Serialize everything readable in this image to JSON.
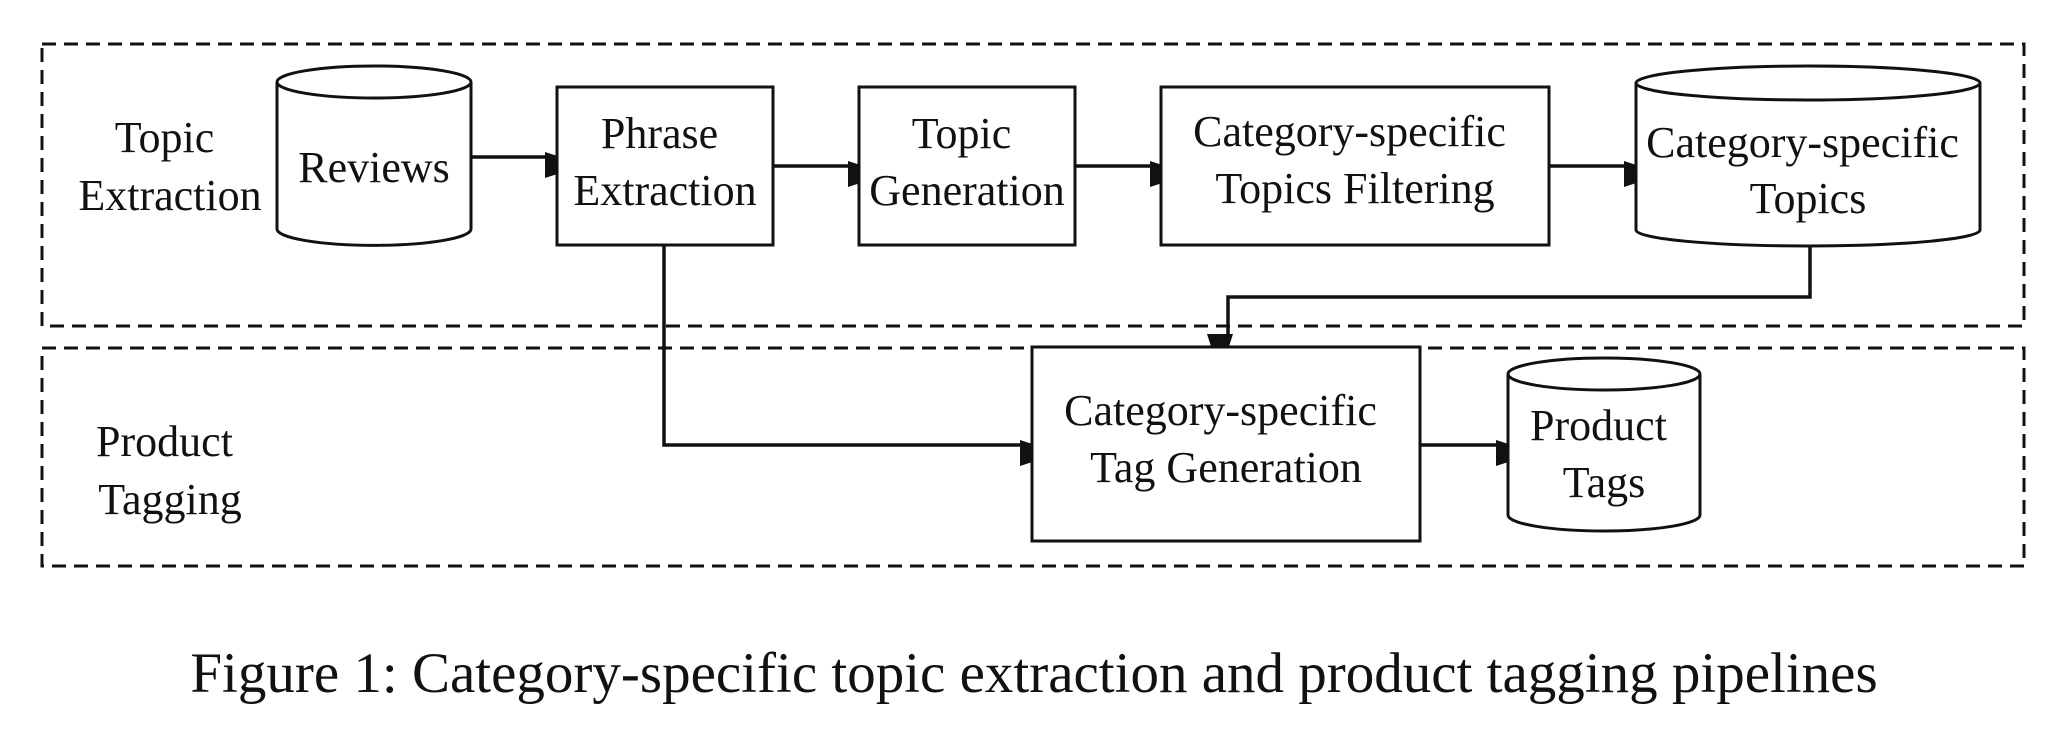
{
  "diagram": {
    "groups": {
      "topic_extraction": {
        "label_lines": [
          "Topic",
          "Extraction"
        ]
      },
      "product_tagging": {
        "label_lines": [
          "Product",
          "Tagging"
        ]
      }
    },
    "nodes": {
      "reviews": {
        "shape": "cylinder",
        "label_lines": [
          "Reviews"
        ]
      },
      "phrase_extraction": {
        "shape": "box",
        "label_lines": [
          "Phrase",
          "Extraction"
        ]
      },
      "topic_generation": {
        "shape": "box",
        "label_lines": [
          "Topic",
          "Generation"
        ]
      },
      "topics_filtering": {
        "shape": "box",
        "label_lines": [
          "Category-specific",
          "Topics Filtering"
        ]
      },
      "category_topics": {
        "shape": "cylinder",
        "label_lines": [
          "Category-specific",
          "Topics"
        ]
      },
      "tag_generation": {
        "shape": "box",
        "label_lines": [
          "Category-specific",
          "Tag Generation"
        ]
      },
      "product_tags": {
        "shape": "cylinder",
        "label_lines": [
          "Product",
          "Tags"
        ]
      }
    },
    "edges": [
      {
        "from": "Reviews",
        "to": "Phrase Extraction"
      },
      {
        "from": "Phrase Extraction",
        "to": "Topic Generation"
      },
      {
        "from": "Topic Generation",
        "to": "Category-specific Topics Filtering"
      },
      {
        "from": "Category-specific Topics Filtering",
        "to": "Category-specific Topics"
      },
      {
        "from": "Category-specific Topics",
        "to": "Category-specific Tag Generation"
      },
      {
        "from": "Phrase Extraction",
        "to": "Category-specific Tag Generation"
      },
      {
        "from": "Category-specific Tag Generation",
        "to": "Product Tags"
      }
    ]
  },
  "caption": "Figure 1: Category-specific topic extraction and product tagging pipelines"
}
